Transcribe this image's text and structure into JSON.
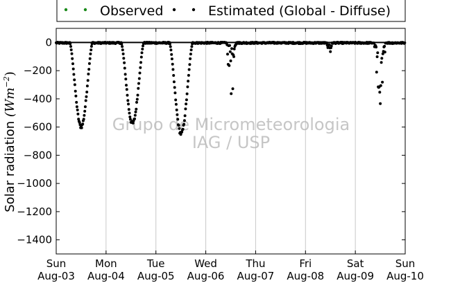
{
  "chart_data": {
    "type": "scatter",
    "title": "",
    "xlabel": "",
    "ylabel": "Solar radiation (Wm⁻²)",
    "ylabel_text": "Solar radiation ",
    "ylabel_unit": "(Wm",
    "ylabel_exp": "−2",
    "ylabel_close": ")",
    "ylim": [
      -1500,
      100
    ],
    "yticks": [
      0,
      -200,
      -400,
      -600,
      -800,
      -1000,
      -1200,
      -1400
    ],
    "xlim": [
      "2014-08-03",
      "2014-08-10"
    ],
    "xticks": [
      {
        "day": "Sun",
        "date": "Aug-03"
      },
      {
        "day": "Mon",
        "date": "Aug-04"
      },
      {
        "day": "Tue",
        "date": "Aug-05"
      },
      {
        "day": "Wed",
        "date": "Aug-06"
      },
      {
        "day": "Thu",
        "date": "Aug-07"
      },
      {
        "day": "Fri",
        "date": "Aug-08"
      },
      {
        "day": "Sat",
        "date": "Aug-09"
      },
      {
        "day": "Sun",
        "date": "Aug-10"
      }
    ],
    "grid": "vertical",
    "legend_position": "top",
    "watermark": [
      "Grupo de Micrometeorologia",
      "IAG / USP"
    ],
    "series": [
      {
        "name": "Observed",
        "color": "#1a8a1a",
        "values": []
      },
      {
        "name": "Estimated (Global - Diffuse)",
        "color": "#000000",
        "days": [
          {
            "day": 0,
            "rise": 0.27,
            "set": 0.73,
            "peak": -610,
            "noise": 0.04
          },
          {
            "day": 1,
            "rise": 0.3,
            "set": 0.76,
            "peak": -590,
            "noise": 0.05
          },
          {
            "day": 2,
            "rise": 0.27,
            "set": 0.74,
            "peak": -660,
            "noise": 0.04
          },
          {
            "day": 3,
            "rise": 0.4,
            "set": 0.62,
            "peak": -430,
            "noise": 0.35,
            "spiky": true
          },
          {
            "day": 4,
            "rise": 0.45,
            "set": 0.55,
            "peak": -15,
            "noise": 0.8,
            "spiky": true
          },
          {
            "day": 5,
            "rise": 0.4,
            "set": 0.55,
            "peak": -130,
            "noise": 0.8,
            "spiky": true
          },
          {
            "day": 6,
            "rise": 0.37,
            "set": 0.62,
            "peak": -450,
            "noise": 0.45,
            "spiky": true
          }
        ]
      }
    ]
  }
}
